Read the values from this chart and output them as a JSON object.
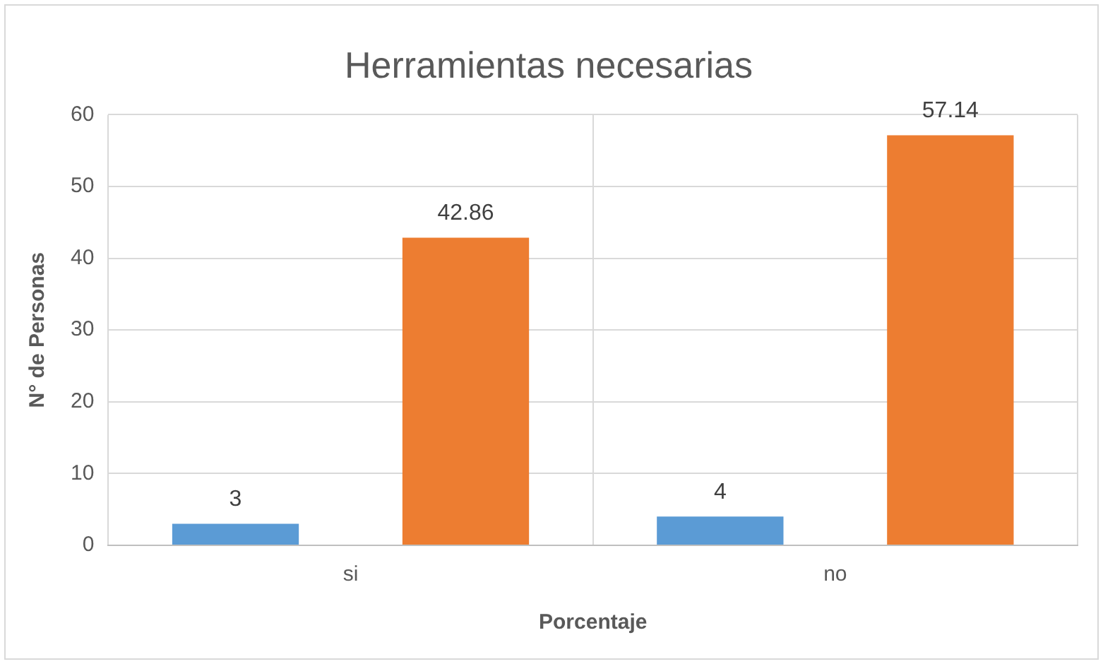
{
  "chart_data": {
    "type": "bar",
    "title": "Herramientas necesarias",
    "xlabel": "Porcentaje",
    "ylabel": "N° de Personas",
    "categories": [
      "si",
      "no"
    ],
    "series": [
      {
        "color": "#5b9bd5",
        "values": [
          3,
          4
        ]
      },
      {
        "color": "#ed7d31",
        "values": [
          42.86,
          57.14
        ]
      }
    ],
    "ylim": [
      0,
      60
    ],
    "yticks": [
      0,
      10,
      20,
      30,
      40,
      50,
      60
    ],
    "grid": true,
    "legend": false,
    "data_labels": true
  }
}
